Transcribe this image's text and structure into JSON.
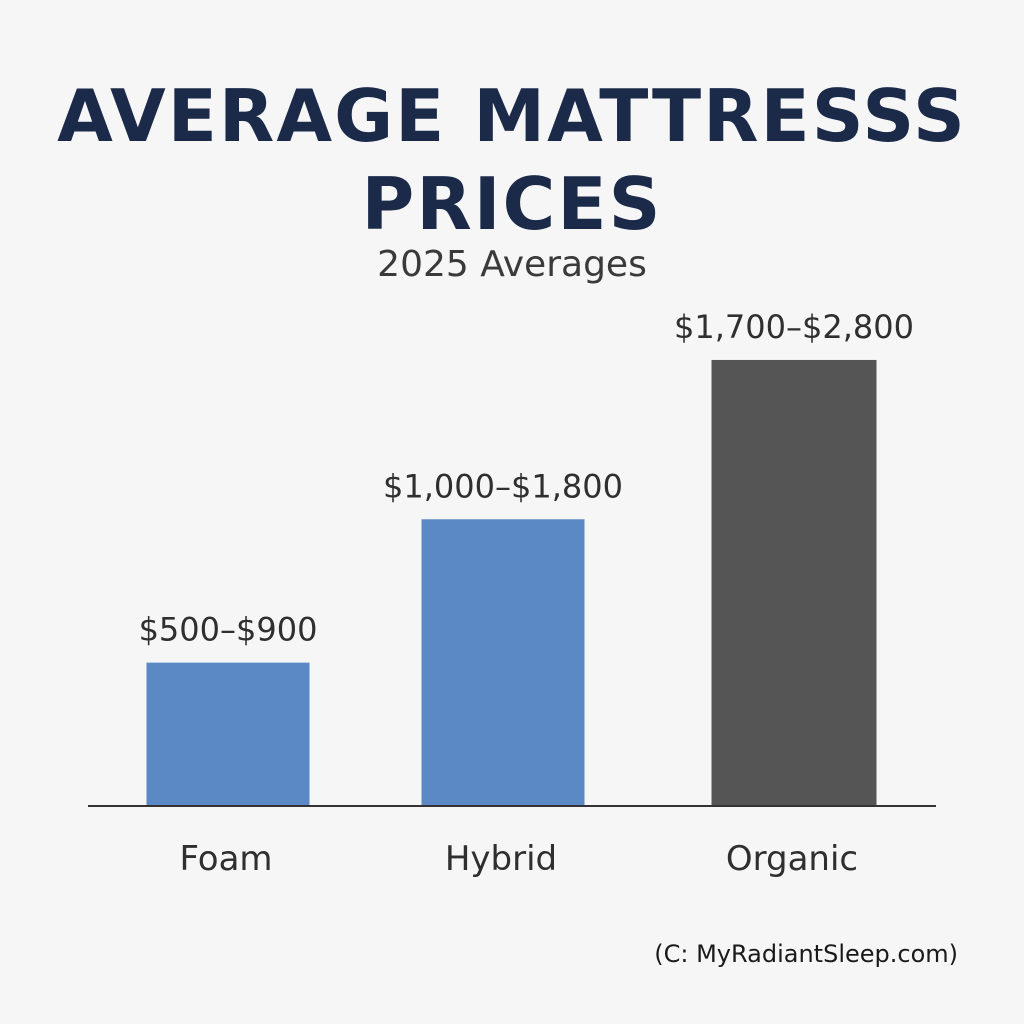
{
  "header": {
    "title": "AVERAGE MATTRESSS PRICES",
    "subtitle": "2025 Averages"
  },
  "footer": {
    "credit": "(C: MyRadiantSleep.com)"
  },
  "colors": {
    "background": "#f6f6f6",
    "title": "#1c2a4a",
    "bar_blue": "#5b89c5",
    "bar_gray": "#555555",
    "axis": "#333333",
    "label_text": "#2f2f2f"
  },
  "chart_data": {
    "type": "bar",
    "title": "AVERAGE MATTRESSS PRICES",
    "subtitle": "2025 Averages",
    "categories": [
      "Foam",
      "Hybrid",
      "Organic"
    ],
    "values": [
      900,
      1800,
      2800
    ],
    "ranges": [
      [
        500,
        900
      ],
      [
        1000,
        1800
      ],
      [
        1700,
        2800
      ]
    ],
    "data_labels": [
      "$500–$900",
      "$1,000–$1,800",
      "$1,700–$2,800"
    ],
    "bar_colors": [
      "#5b89c5",
      "#5b89c5",
      "#555555"
    ],
    "xlabel": "",
    "ylabel": "",
    "grid": false,
    "legend": "none"
  }
}
